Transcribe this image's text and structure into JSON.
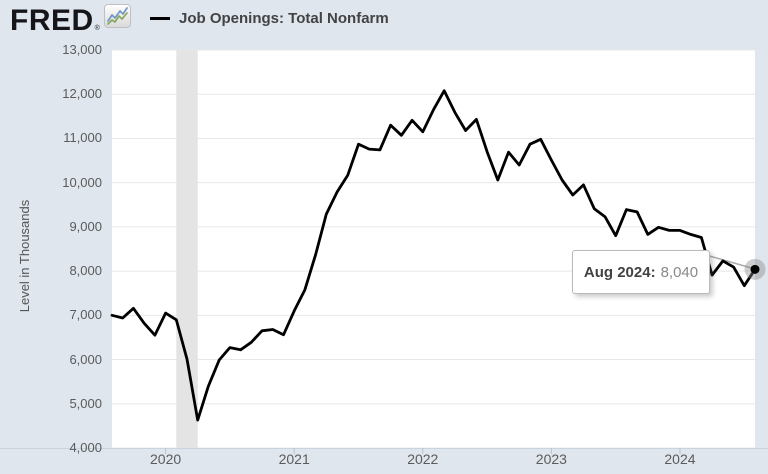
{
  "header": {
    "logo_text": "FRED",
    "logo_registered_mark": "®",
    "legend": {
      "series_label": "Job Openings: Total Nonfarm"
    }
  },
  "tooltip": {
    "label": "Aug 2024:",
    "value": "8,040"
  },
  "colors": {
    "background": "#dfe6ee",
    "plot_background": "#ffffff",
    "gridline": "#e8e8e8",
    "recession_band": "#e4e4e4",
    "axis_line": "#c9d3de",
    "axis_tick": "#b5c4d2",
    "tick_text": "#5b5b5b",
    "line": "#000000",
    "legend_text": "#434343",
    "tooltip_value_text": "#888888",
    "hover_halo": "#8a8a8a"
  },
  "chart_data": {
    "type": "line",
    "title": "Job Openings: Total Nonfarm",
    "xlabel": "",
    "ylabel": "Level in Thousands",
    "ylim": [
      4000,
      13000
    ],
    "y_ticks": [
      "4,000",
      "5,000",
      "6,000",
      "7,000",
      "8,000",
      "9,000",
      "10,000",
      "11,000",
      "12,000",
      "13,000"
    ],
    "x_ticks": [
      "2020",
      "2021",
      "2022",
      "2023",
      "2024"
    ],
    "grid": true,
    "legend_position": "top-left",
    "recession_band": {
      "start": "2020-02",
      "end": "2020-04"
    },
    "last_point": {
      "date": "Aug 2024",
      "value": 8040
    },
    "series": [
      {
        "name": "Job Openings: Total Nonfarm",
        "color": "#000000",
        "points": [
          [
            "2019-08",
            7000
          ],
          [
            "2019-09",
            6940
          ],
          [
            "2019-10",
            7160
          ],
          [
            "2019-11",
            6820
          ],
          [
            "2019-12",
            6550
          ],
          [
            "2020-01",
            7050
          ],
          [
            "2020-02",
            6900
          ],
          [
            "2020-03",
            6010
          ],
          [
            "2020-04",
            4630
          ],
          [
            "2020-05",
            5400
          ],
          [
            "2020-06",
            5990
          ],
          [
            "2020-07",
            6270
          ],
          [
            "2020-08",
            6220
          ],
          [
            "2020-09",
            6390
          ],
          [
            "2020-10",
            6650
          ],
          [
            "2020-11",
            6680
          ],
          [
            "2020-12",
            6560
          ],
          [
            "2021-01",
            7100
          ],
          [
            "2021-02",
            7580
          ],
          [
            "2021-03",
            8370
          ],
          [
            "2021-04",
            9290
          ],
          [
            "2021-05",
            9790
          ],
          [
            "2021-06",
            10170
          ],
          [
            "2021-07",
            10870
          ],
          [
            "2021-08",
            10760
          ],
          [
            "2021-09",
            10740
          ],
          [
            "2021-10",
            11300
          ],
          [
            "2021-11",
            11070
          ],
          [
            "2021-12",
            11410
          ],
          [
            "2022-01",
            11150
          ],
          [
            "2022-02",
            11650
          ],
          [
            "2022-03",
            12080
          ],
          [
            "2022-04",
            11590
          ],
          [
            "2022-05",
            11180
          ],
          [
            "2022-06",
            11430
          ],
          [
            "2022-07",
            10700
          ],
          [
            "2022-08",
            10060
          ],
          [
            "2022-09",
            10690
          ],
          [
            "2022-10",
            10400
          ],
          [
            "2022-11",
            10870
          ],
          [
            "2022-12",
            10980
          ],
          [
            "2023-01",
            10510
          ],
          [
            "2023-02",
            10060
          ],
          [
            "2023-03",
            9720
          ],
          [
            "2023-04",
            9950
          ],
          [
            "2023-05",
            9410
          ],
          [
            "2023-06",
            9230
          ],
          [
            "2023-07",
            8800
          ],
          [
            "2023-08",
            9390
          ],
          [
            "2023-09",
            9340
          ],
          [
            "2023-10",
            8830
          ],
          [
            "2023-11",
            8990
          ],
          [
            "2023-12",
            8920
          ],
          [
            "2024-01",
            8920
          ],
          [
            "2024-02",
            8830
          ],
          [
            "2024-03",
            8760
          ],
          [
            "2024-04",
            7910
          ],
          [
            "2024-05",
            8230
          ],
          [
            "2024-06",
            8090
          ],
          [
            "2024-07",
            7670
          ],
          [
            "2024-08",
            8040
          ]
        ]
      }
    ]
  }
}
